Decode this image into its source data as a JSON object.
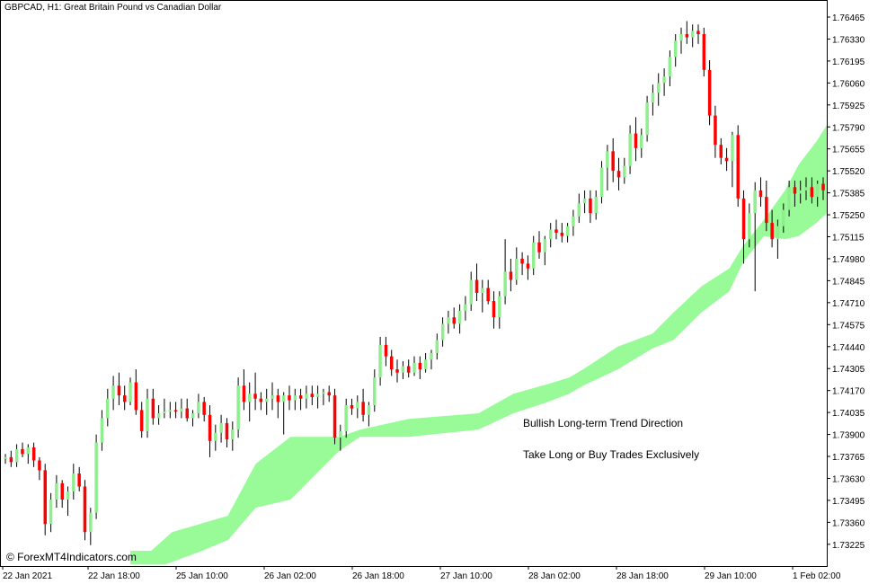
{
  "chart": {
    "title": "GBPCAD, H1:  Great Britain Pound vs Canadian Dollar",
    "annotation_1": "Bullish Long-term Trend Direction",
    "annotation_2": "Take Long or Buy Trades Exclusively",
    "watermark": "© ForexMT4Indicators.com"
  },
  "colors": {
    "background": "#ffffff",
    "bull_candle": "#90ee90",
    "bear_candle": "#ff0000",
    "wick": "#000000",
    "cloud": "#98fb98",
    "axis": "#000000"
  },
  "chart_data": {
    "type": "candlestick",
    "symbol": "GBPCAD",
    "timeframe": "H1",
    "y_ticks": [
      "1.76465",
      "1.76330",
      "1.76195",
      "1.76060",
      "1.75925",
      "1.75790",
      "1.75655",
      "1.75520",
      "1.75385",
      "1.75250",
      "1.75115",
      "1.74980",
      "1.74845",
      "1.74710",
      "1.74575",
      "1.74440",
      "1.74305",
      "1.74170",
      "1.74035",
      "1.73900",
      "1.73765",
      "1.73630",
      "1.73495",
      "1.73360",
      "1.73225"
    ],
    "x_ticks": [
      "22 Jan 2021",
      "22 Jan 18:00",
      "25 Jan 10:00",
      "26 Jan 02:00",
      "26 Jan 18:00",
      "27 Jan 10:00",
      "28 Jan 02:00",
      "28 Jan 18:00",
      "29 Jan 10:00",
      "1 Feb 02:00"
    ],
    "ylim": [
      1.7315,
      1.7652
    ],
    "candles": [
      [
        1.7375,
        1.7378,
        1.7372,
        1.7376
      ],
      [
        1.7376,
        1.738,
        1.737,
        1.7373
      ],
      [
        1.7373,
        1.7384,
        1.737,
        1.7381
      ],
      [
        1.7381,
        1.7385,
        1.7376,
        1.7378
      ],
      [
        1.7378,
        1.7384,
        1.7372,
        1.7382
      ],
      [
        1.7382,
        1.7385,
        1.737,
        1.7374
      ],
      [
        1.7374,
        1.7376,
        1.7362,
        1.7368
      ],
      [
        1.7368,
        1.7372,
        1.7328,
        1.7335
      ],
      [
        1.7335,
        1.7354,
        1.733,
        1.735
      ],
      [
        1.735,
        1.7365,
        1.7345,
        1.736
      ],
      [
        1.736,
        1.7362,
        1.7345,
        1.735
      ],
      [
        1.735,
        1.7358,
        1.734,
        1.7355
      ],
      [
        1.7355,
        1.7372,
        1.735,
        1.7366
      ],
      [
        1.7366,
        1.737,
        1.7355,
        1.7358
      ],
      [
        1.7358,
        1.7362,
        1.7325,
        1.733
      ],
      [
        1.733,
        1.7345,
        1.7322,
        1.7342
      ],
      [
        1.7342,
        1.739,
        1.7338,
        1.7385
      ],
      [
        1.7385,
        1.7405,
        1.738,
        1.74
      ],
      [
        1.74,
        1.7418,
        1.7395,
        1.7412
      ],
      [
        1.7412,
        1.7426,
        1.7405,
        1.742
      ],
      [
        1.742,
        1.7428,
        1.7408,
        1.7414
      ],
      [
        1.7414,
        1.742,
        1.7405,
        1.741
      ],
      [
        1.741,
        1.7425,
        1.7408,
        1.7422
      ],
      [
        1.7422,
        1.743,
        1.7402,
        1.7405
      ],
      [
        1.7405,
        1.741,
        1.7388,
        1.7392
      ],
      [
        1.7392,
        1.7418,
        1.7388,
        1.7412
      ],
      [
        1.7412,
        1.7418,
        1.7396,
        1.74
      ],
      [
        1.74,
        1.7408,
        1.7396,
        1.7403
      ],
      [
        1.7403,
        1.7412,
        1.74,
        1.7404
      ],
      [
        1.7404,
        1.741,
        1.74,
        1.7405
      ],
      [
        1.7405,
        1.741,
        1.74,
        1.7404
      ],
      [
        1.7404,
        1.7412,
        1.74,
        1.7406
      ],
      [
        1.7406,
        1.7412,
        1.7398,
        1.74
      ],
      [
        1.74,
        1.7405,
        1.7395,
        1.7403
      ],
      [
        1.7403,
        1.7415,
        1.74,
        1.741
      ],
      [
        1.741,
        1.7413,
        1.7398,
        1.7402
      ],
      [
        1.7402,
        1.7408,
        1.7376,
        1.7386
      ],
      [
        1.7386,
        1.7396,
        1.738,
        1.7391
      ],
      [
        1.7391,
        1.7402,
        1.7385,
        1.7397
      ],
      [
        1.7397,
        1.74,
        1.7382,
        1.7387
      ],
      [
        1.7387,
        1.7398,
        1.738,
        1.7393
      ],
      [
        1.7393,
        1.7425,
        1.7388,
        1.742
      ],
      [
        1.742,
        1.743,
        1.7405,
        1.741
      ],
      [
        1.741,
        1.7422,
        1.7398,
        1.7415
      ],
      [
        1.7415,
        1.7428,
        1.7405,
        1.7412
      ],
      [
        1.7412,
        1.7416,
        1.7405,
        1.741
      ],
      [
        1.741,
        1.7418,
        1.7402,
        1.7412
      ],
      [
        1.7412,
        1.7422,
        1.7405,
        1.7414
      ],
      [
        1.7414,
        1.7418,
        1.74,
        1.741
      ],
      [
        1.741,
        1.7416,
        1.739,
        1.7414
      ],
      [
        1.7414,
        1.742,
        1.7405,
        1.7411
      ],
      [
        1.7411,
        1.7418,
        1.7405,
        1.7414
      ],
      [
        1.7414,
        1.7418,
        1.7405,
        1.7412
      ],
      [
        1.7412,
        1.742,
        1.7406,
        1.7415
      ],
      [
        1.7415,
        1.742,
        1.7408,
        1.7413
      ],
      [
        1.7413,
        1.742,
        1.7406,
        1.7415
      ],
      [
        1.7415,
        1.7418,
        1.7408,
        1.7416
      ],
      [
        1.7416,
        1.742,
        1.741,
        1.7414
      ],
      [
        1.7414,
        1.7418,
        1.7384,
        1.7388
      ],
      [
        1.7388,
        1.7396,
        1.738,
        1.7392
      ],
      [
        1.7392,
        1.7412,
        1.7388,
        1.7408
      ],
      [
        1.7408,
        1.7412,
        1.7402,
        1.7406
      ],
      [
        1.7406,
        1.7414,
        1.74,
        1.741
      ],
      [
        1.741,
        1.7418,
        1.7398,
        1.7402
      ],
      [
        1.7402,
        1.741,
        1.7395,
        1.7408
      ],
      [
        1.7408,
        1.743,
        1.7404,
        1.7425
      ],
      [
        1.7425,
        1.745,
        1.742,
        1.7445
      ],
      [
        1.7445,
        1.745,
        1.7432,
        1.7438
      ],
      [
        1.7438,
        1.7442,
        1.7426,
        1.743
      ],
      [
        1.743,
        1.7436,
        1.7422,
        1.7428
      ],
      [
        1.7428,
        1.7435,
        1.7424,
        1.7432
      ],
      [
        1.7432,
        1.7436,
        1.7425,
        1.7428
      ],
      [
        1.7428,
        1.7438,
        1.7426,
        1.7434
      ],
      [
        1.7434,
        1.7438,
        1.7424,
        1.743
      ],
      [
        1.743,
        1.744,
        1.7428,
        1.7436
      ],
      [
        1.7436,
        1.7442,
        1.743,
        1.744
      ],
      [
        1.744,
        1.7452,
        1.7436,
        1.7448
      ],
      [
        1.7448,
        1.7462,
        1.7444,
        1.7458
      ],
      [
        1.7458,
        1.7466,
        1.7452,
        1.7462
      ],
      [
        1.7462,
        1.7468,
        1.7455,
        1.7458
      ],
      [
        1.7458,
        1.747,
        1.7452,
        1.7466
      ],
      [
        1.7466,
        1.7475,
        1.746,
        1.747
      ],
      [
        1.747,
        1.749,
        1.7466,
        1.7485
      ],
      [
        1.7485,
        1.7495,
        1.7472,
        1.7477
      ],
      [
        1.7477,
        1.7485,
        1.7465,
        1.748
      ],
      [
        1.748,
        1.7485,
        1.747,
        1.7472
      ],
      [
        1.7472,
        1.7478,
        1.7455,
        1.7462
      ],
      [
        1.7462,
        1.7478,
        1.7455,
        1.7475
      ],
      [
        1.7475,
        1.751,
        1.747,
        1.749
      ],
      [
        1.749,
        1.7498,
        1.7478,
        1.7485
      ],
      [
        1.7485,
        1.7505,
        1.7482,
        1.7498
      ],
      [
        1.7498,
        1.7502,
        1.7488,
        1.7495
      ],
      [
        1.7495,
        1.75,
        1.7485,
        1.7492
      ],
      [
        1.7492,
        1.7512,
        1.7488,
        1.7508
      ],
      [
        1.7508,
        1.7515,
        1.7498,
        1.7502
      ],
      [
        1.7502,
        1.7512,
        1.7494,
        1.751
      ],
      [
        1.751,
        1.752,
        1.7505,
        1.7516
      ],
      [
        1.7516,
        1.7522,
        1.751,
        1.7514
      ],
      [
        1.7514,
        1.752,
        1.7508,
        1.7512
      ],
      [
        1.7512,
        1.752,
        1.7508,
        1.7518
      ],
      [
        1.7518,
        1.7528,
        1.7512,
        1.7524
      ],
      [
        1.7524,
        1.7538,
        1.752,
        1.7532
      ],
      [
        1.7532,
        1.754,
        1.7526,
        1.7535
      ],
      [
        1.7535,
        1.754,
        1.752,
        1.7526
      ],
      [
        1.7526,
        1.754,
        1.7522,
        1.7536
      ],
      [
        1.7536,
        1.7558,
        1.7532,
        1.7554
      ],
      [
        1.7554,
        1.7568,
        1.754,
        1.7564
      ],
      [
        1.7564,
        1.7572,
        1.7545,
        1.7552
      ],
      [
        1.7552,
        1.756,
        1.754,
        1.7548
      ],
      [
        1.7548,
        1.756,
        1.7544,
        1.7555
      ],
      [
        1.7555,
        1.758,
        1.755,
        1.7575
      ],
      [
        1.7575,
        1.7585,
        1.7558,
        1.7566
      ],
      [
        1.7566,
        1.7578,
        1.756,
        1.7574
      ],
      [
        1.7574,
        1.7598,
        1.757,
        1.7594
      ],
      [
        1.7594,
        1.7605,
        1.7586,
        1.76
      ],
      [
        1.76,
        1.7612,
        1.7592,
        1.7606
      ],
      [
        1.7606,
        1.7615,
        1.7598,
        1.761
      ],
      [
        1.761,
        1.7626,
        1.7604,
        1.7622
      ],
      [
        1.7622,
        1.7636,
        1.7616,
        1.7632
      ],
      [
        1.7632,
        1.764,
        1.7624,
        1.7636
      ],
      [
        1.7636,
        1.7644,
        1.763,
        1.7634
      ],
      [
        1.7634,
        1.7642,
        1.7628,
        1.7638
      ],
      [
        1.7638,
        1.7642,
        1.763,
        1.7636
      ],
      [
        1.7636,
        1.764,
        1.761,
        1.7614
      ],
      [
        1.7614,
        1.762,
        1.758,
        1.7586
      ],
      [
        1.7586,
        1.7592,
        1.756,
        1.7568
      ],
      [
        1.7568,
        1.7572,
        1.7556,
        1.756
      ],
      [
        1.756,
        1.7566,
        1.7552,
        1.7558
      ],
      [
        1.7558,
        1.7576,
        1.7542,
        1.7574
      ],
      [
        1.7574,
        1.758,
        1.753,
        1.7535
      ],
      [
        1.7535,
        1.754,
        1.7495,
        1.751
      ],
      [
        1.751,
        1.7532,
        1.7505,
        1.7526
      ],
      [
        1.7526,
        1.7545,
        1.7478,
        1.754
      ],
      [
        1.754,
        1.7548,
        1.753,
        1.7536
      ],
      [
        1.7536,
        1.7546,
        1.7515,
        1.752
      ],
      [
        1.752,
        1.7528,
        1.7505,
        1.751
      ],
      [
        1.751,
        1.7522,
        1.7498,
        1.7518
      ],
      [
        1.7518,
        1.7532,
        1.7514,
        1.7528
      ],
      [
        1.7528,
        1.7546,
        1.7524,
        1.7542
      ],
      [
        1.7542,
        1.7546,
        1.753,
        1.7538
      ],
      [
        1.7538,
        1.7546,
        1.7532,
        1.754
      ],
      [
        1.754,
        1.7548,
        1.7534,
        1.7542
      ],
      [
        1.7542,
        1.7548,
        1.7532,
        1.7536
      ],
      [
        1.7536,
        1.7546,
        1.753,
        1.7544
      ],
      [
        1.7544,
        1.7548,
        1.7534,
        1.754
      ]
    ],
    "cloud_upper": [
      [
        0,
        1.73185
      ],
      [
        0.03,
        1.73185
      ],
      [
        0.06,
        1.733
      ],
      [
        0.14,
        1.734
      ],
      [
        0.18,
        1.7372
      ],
      [
        0.23,
        1.73885
      ],
      [
        0.3,
        1.73885
      ],
      [
        0.33,
        1.7393
      ],
      [
        0.4,
        1.73995
      ],
      [
        0.5,
        1.7403
      ],
      [
        0.55,
        1.7415
      ],
      [
        0.6,
        1.7421
      ],
      [
        0.63,
        1.7425
      ],
      [
        0.65,
        1.743
      ],
      [
        0.7,
        1.7444
      ],
      [
        0.75,
        1.7452
      ],
      [
        0.78,
        1.7465
      ],
      [
        0.82,
        1.7481
      ],
      [
        0.86,
        1.7492
      ],
      [
        0.88,
        1.7506
      ],
      [
        0.91,
        1.7522
      ],
      [
        0.94,
        1.754
      ],
      [
        0.96,
        1.7556
      ],
      [
        0.985,
        1.757
      ],
      [
        1.0,
        1.758
      ]
    ],
    "cloud_lower": [
      [
        0,
        1.731
      ],
      [
        0.05,
        1.731
      ],
      [
        0.1,
        1.7318
      ],
      [
        0.14,
        1.7325
      ],
      [
        0.18,
        1.7345
      ],
      [
        0.23,
        1.735
      ],
      [
        0.3,
        1.738
      ],
      [
        0.33,
        1.73885
      ],
      [
        0.4,
        1.73885
      ],
      [
        0.5,
        1.7393
      ],
      [
        0.55,
        1.7403
      ],
      [
        0.6,
        1.741
      ],
      [
        0.63,
        1.7415
      ],
      [
        0.65,
        1.742
      ],
      [
        0.7,
        1.743
      ],
      [
        0.75,
        1.7443
      ],
      [
        0.78,
        1.7448
      ],
      [
        0.82,
        1.7465
      ],
      [
        0.86,
        1.7478
      ],
      [
        0.88,
        1.7496
      ],
      [
        0.91,
        1.7512
      ],
      [
        0.94,
        1.751
      ],
      [
        0.96,
        1.7512
      ],
      [
        0.985,
        1.752
      ],
      [
        1.0,
        1.7526
      ]
    ]
  }
}
